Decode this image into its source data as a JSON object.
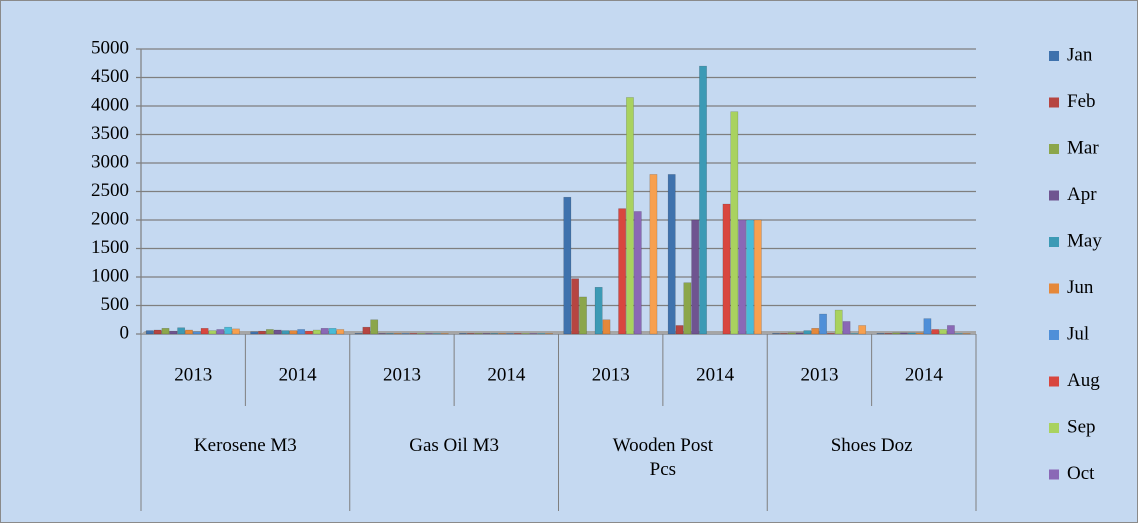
{
  "chart_data": {
    "type": "bar",
    "groups": [
      "Kerosene M3",
      "Gas Oil M3",
      "Wooden Post Pcs",
      "Shoes  Doz"
    ],
    "categories": [
      "2013",
      "2014",
      "2013",
      "2014",
      "2013",
      "2014",
      "2013",
      "2014"
    ],
    "series": [
      {
        "name": "Jan",
        "color": "#3f72ad",
        "values": [
          60,
          40,
          10,
          10,
          2400,
          2800,
          10,
          10
        ]
      },
      {
        "name": "Feb",
        "color": "#b64541",
        "values": [
          70,
          50,
          120,
          10,
          970,
          150,
          10,
          10
        ]
      },
      {
        "name": "Mar",
        "color": "#8ba64b",
        "values": [
          100,
          80,
          250,
          10,
          650,
          900,
          20,
          20
        ]
      },
      {
        "name": "Apr",
        "color": "#6f5490",
        "values": [
          50,
          70,
          10,
          10,
          0,
          2000,
          20,
          20
        ]
      },
      {
        "name": "May",
        "color": "#3c9ab5",
        "values": [
          110,
          60,
          10,
          10,
          820,
          4700,
          60,
          20
        ]
      },
      {
        "name": "Jun",
        "color": "#e5883a",
        "values": [
          70,
          60,
          10,
          10,
          250,
          0,
          100,
          20
        ]
      },
      {
        "name": "Jul",
        "color": "#4f8fd8",
        "values": [
          40,
          80,
          10,
          10,
          0,
          0,
          350,
          270
        ]
      },
      {
        "name": "Aug",
        "color": "#d8463f",
        "values": [
          100,
          50,
          10,
          10,
          2200,
          2280,
          10,
          80
        ]
      },
      {
        "name": "Sep",
        "color": "#a9d25f",
        "values": [
          60,
          70,
          10,
          10,
          4150,
          3900,
          420,
          80
        ]
      },
      {
        "name": "Oct",
        "color": "#8a68b6",
        "values": [
          80,
          100,
          10,
          10,
          2150,
          2000,
          220,
          150
        ]
      },
      {
        "color": "#48bcd8",
        "values": [
          120,
          100,
          10,
          10,
          0,
          2000,
          10,
          10
        ]
      },
      {
        "color": "#f7a04f",
        "values": [
          90,
          80,
          10,
          10,
          2800,
          2000,
          150,
          10
        ]
      }
    ],
    "ylim": [
      0,
      5000
    ],
    "yticks": [
      0,
      500,
      1000,
      1500,
      2000,
      2500,
      3000,
      3500,
      4000,
      4500,
      5000
    ],
    "grid": true
  }
}
